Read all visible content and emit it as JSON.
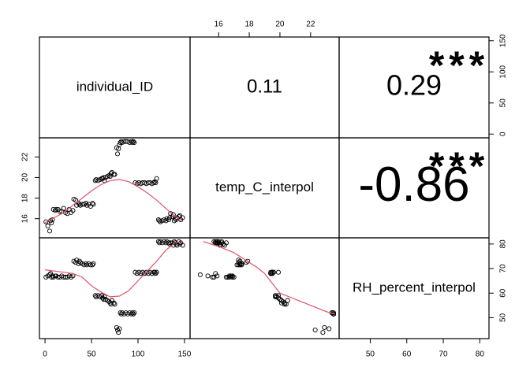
{
  "colors": {
    "star": "#DF536B",
    "smooth": "#DF536B",
    "point": "#000000"
  },
  "chart_data": {
    "type": "scatter",
    "variables": [
      "individual_ID",
      "temp_C_interpol",
      "RH_percent_interpol"
    ],
    "correlations": [
      {
        "pair": [
          "individual_ID",
          "temp_C_interpol"
        ],
        "r": "0.11",
        "stars": ""
      },
      {
        "pair": [
          "individual_ID",
          "RH_percent_interpol"
        ],
        "r": "0.29",
        "stars": "***"
      },
      {
        "pair": [
          "temp_C_interpol",
          "RH_percent_interpol"
        ],
        "r": "-0.86",
        "stars": "***"
      }
    ],
    "axes": {
      "individual_ID": {
        "range": [
          0,
          150
        ],
        "ticks": [
          "0",
          "50",
          "100",
          "150"
        ]
      },
      "temp_C_interpol": {
        "range": [
          14.5,
          23.5
        ],
        "ticks": [
          "16",
          "18",
          "20",
          "22"
        ]
      },
      "RH_percent_interpol": {
        "range": [
          43,
          81
        ],
        "ticks": [
          "50",
          "60",
          "70",
          "80"
        ]
      },
      "right_top_row": {
        "range": [
          0,
          150
        ],
        "ticks": [
          "0",
          "50",
          "100",
          "150"
        ]
      }
    },
    "observations": [
      [
        1,
        15.7,
        66.5
      ],
      [
        3,
        15.3,
        67
      ],
      [
        5,
        14.8,
        67.5
      ],
      [
        6,
        15.8,
        68
      ],
      [
        7,
        15.6,
        66.5
      ],
      [
        8,
        15.9,
        67
      ],
      [
        9,
        16.9,
        66.5
      ],
      [
        11,
        16.8,
        67
      ],
      [
        12,
        16.9,
        67
      ],
      [
        14,
        16.9,
        66.5
      ],
      [
        16,
        16.7,
        66.5
      ],
      [
        18,
        16.7,
        67
      ],
      [
        20,
        17,
        66.5
      ],
      [
        22,
        16.6,
        66.5
      ],
      [
        24,
        16.5,
        66.5
      ],
      [
        26,
        16.9,
        67
      ],
      [
        28,
        16.6,
        66.5
      ],
      [
        30,
        16.8,
        67
      ],
      [
        31,
        17.9,
        73
      ],
      [
        33,
        17.8,
        72.5
      ],
      [
        34,
        17.3,
        73.5
      ],
      [
        36,
        17.5,
        72
      ],
      [
        37,
        17.4,
        73
      ],
      [
        38,
        17.3,
        72.5
      ],
      [
        40,
        17.4,
        72
      ],
      [
        42,
        17.4,
        71.5
      ],
      [
        44,
        17.5,
        72
      ],
      [
        45,
        17.3,
        71.5
      ],
      [
        47,
        17.4,
        72
      ],
      [
        49,
        17.2,
        71.5
      ],
      [
        51,
        17.5,
        71.5
      ],
      [
        52,
        17.4,
        72
      ],
      [
        54,
        19.7,
        59
      ],
      [
        55,
        19.8,
        58.5
      ],
      [
        57,
        19.7,
        59
      ],
      [
        59,
        19.8,
        58.5
      ],
      [
        61,
        19.9,
        59
      ],
      [
        62,
        19.9,
        58
      ],
      [
        63,
        20,
        57.5
      ],
      [
        64,
        19.7,
        58.5
      ],
      [
        65,
        20,
        57.5
      ],
      [
        67,
        20.1,
        57
      ],
      [
        69,
        20.2,
        56.5
      ],
      [
        70,
        20.1,
        56
      ],
      [
        71,
        20.4,
        55.5
      ],
      [
        72,
        20.5,
        57
      ],
      [
        74,
        20.3,
        56
      ],
      [
        75,
        20.3,
        55.5
      ],
      [
        77,
        22.9,
        46
      ],
      [
        78,
        22.3,
        45
      ],
      [
        79,
        22.8,
        44
      ],
      [
        80,
        23.2,
        45.5
      ],
      [
        81,
        23.4,
        52
      ],
      [
        82,
        23.5,
        51.5
      ],
      [
        83,
        23.4,
        52
      ],
      [
        85,
        23.5,
        51.5
      ],
      [
        87,
        23.5,
        52
      ],
      [
        89,
        23.5,
        51.5
      ],
      [
        91,
        23.4,
        52
      ],
      [
        93,
        23.5,
        51.5
      ],
      [
        94,
        23.4,
        52
      ],
      [
        95,
        23.5,
        51.5
      ],
      [
        96,
        23.4,
        52
      ],
      [
        97,
        19.5,
        68.5
      ],
      [
        99,
        19.4,
        68
      ],
      [
        101,
        19.5,
        68.5
      ],
      [
        103,
        19.4,
        68
      ],
      [
        105,
        19.5,
        68.5
      ],
      [
        107,
        19.5,
        68
      ],
      [
        109,
        19.4,
        68.5
      ],
      [
        111,
        19.5,
        68
      ],
      [
        113,
        19.5,
        68.5
      ],
      [
        115,
        19.4,
        68
      ],
      [
        117,
        19.5,
        68.5
      ],
      [
        118,
        19.6,
        68.5
      ],
      [
        119,
        19.5,
        68
      ],
      [
        120,
        19.9,
        68.5
      ],
      [
        122,
        15.9,
        81
      ],
      [
        123,
        15.8,
        80.5
      ],
      [
        124,
        15.7,
        81
      ],
      [
        126,
        15.8,
        80.5
      ],
      [
        128,
        15.9,
        81
      ],
      [
        130,
        15.8,
        80.5
      ],
      [
        131,
        16,
        81
      ],
      [
        133,
        15.9,
        80.5
      ],
      [
        134,
        16.1,
        80
      ],
      [
        135,
        16.5,
        80.5
      ],
      [
        137,
        16.2,
        80.5
      ],
      [
        138,
        16.4,
        79.5
      ],
      [
        139,
        15.8,
        81
      ],
      [
        140,
        16,
        80.5
      ],
      [
        141,
        15.9,
        80
      ],
      [
        142,
        16.1,
        79.5
      ],
      [
        144,
        16.2,
        81
      ],
      [
        145,
        16.3,
        80
      ],
      [
        146,
        15.9,
        80.5
      ],
      [
        148,
        16.1,
        79.5
      ]
    ],
    "smoothers": {
      "temp_vs_id": [
        [
          0,
          15.6
        ],
        [
          10,
          16.1
        ],
        [
          20,
          16.6
        ],
        [
          30,
          17.3
        ],
        [
          40,
          18
        ],
        [
          50,
          18.7
        ],
        [
          60,
          19.3
        ],
        [
          70,
          19.7
        ],
        [
          80,
          19.8
        ],
        [
          90,
          19.6
        ],
        [
          100,
          19.1
        ],
        [
          110,
          18.5
        ],
        [
          120,
          17.8
        ],
        [
          130,
          17
        ],
        [
          140,
          16.2
        ],
        [
          148,
          15.7
        ]
      ],
      "rh_vs_id": [
        [
          0,
          69.5
        ],
        [
          10,
          69
        ],
        [
          20,
          68.5
        ],
        [
          30,
          68
        ],
        [
          40,
          66.5
        ],
        [
          50,
          63
        ],
        [
          60,
          60.5
        ],
        [
          70,
          58.5
        ],
        [
          80,
          58.8
        ],
        [
          90,
          61
        ],
        [
          100,
          65
        ],
        [
          110,
          69
        ],
        [
          120,
          73
        ],
        [
          130,
          77.5
        ],
        [
          140,
          80.5
        ],
        [
          148,
          81
        ]
      ],
      "rh_vs_temp": [
        [
          15,
          81
        ],
        [
          16,
          79
        ],
        [
          17,
          76.5
        ],
        [
          17.5,
          74.5
        ],
        [
          18,
          72.5
        ],
        [
          18.5,
          70.5
        ],
        [
          19,
          68
        ],
        [
          19.5,
          64
        ],
        [
          20,
          60
        ],
        [
          21,
          57.5
        ],
        [
          22,
          55
        ],
        [
          23,
          52.5
        ],
        [
          23.5,
          51.5
        ]
      ]
    }
  }
}
